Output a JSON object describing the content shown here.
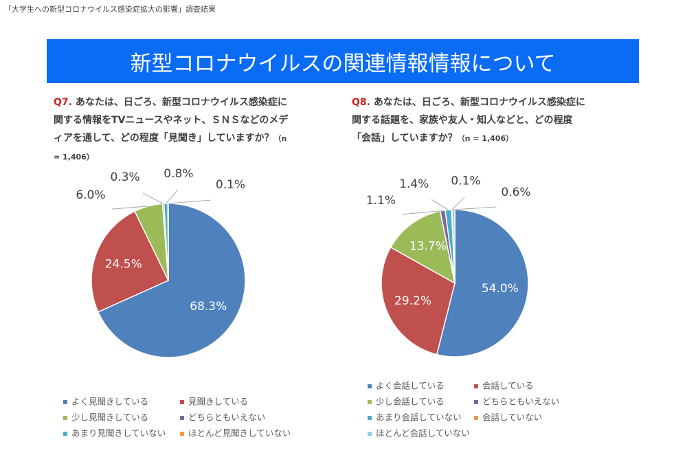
{
  "header": {
    "caption": "「大学生への新型コロナウイルス感染症拡大の影響」調査結果",
    "banner": "新型コロナウイルスの関連情報情報について"
  },
  "chart_data": [
    {
      "type": "pie",
      "label": "Q7.",
      "title": "あなたは、日ごろ、新型コロナウイルス感染症に関する情報をTVニュースやネット、ＳＮＳなどのメディアを通して、どの程度「見聞き」していますか？",
      "note": "（n = 1,406）",
      "categories": [
        "よく見聞きしている",
        "見聞きしている",
        "少し見聞きしている",
        "どちらともいえない",
        "あまり見聞きしていない",
        "ほとんど見聞きしていない"
      ],
      "values": [
        68.3,
        24.5,
        6.0,
        0.3,
        0.8,
        0.1
      ],
      "value_labels": [
        "68.3%",
        "24.5%",
        "6.0%",
        "0.3%",
        "0.8%",
        "0.1%"
      ],
      "colors": [
        "#4f81bd",
        "#c0504d",
        "#9bbb59",
        "#8064a2",
        "#4bacc6",
        "#f79646"
      ]
    },
    {
      "type": "pie",
      "label": "Q8.",
      "title": "あなたは、日ごろ、新型コロナウイルス感染症に関する話題を、家族や友人・知人などと、どの程度「会話」していますか？",
      "note": "（n = 1,406）",
      "categories": [
        "よく会話している",
        "会話している",
        "少し会話している",
        "どちらともいえない",
        "あまり会話していない",
        "会話していない",
        "ほとんど会話していない"
      ],
      "values": [
        54.0,
        29.2,
        13.7,
        1.1,
        1.4,
        0.1,
        0.6
      ],
      "value_labels": [
        "54.0%",
        "29.2%",
        "13.7%",
        "1.1%",
        "1.4%",
        "0.1%",
        "0.6%"
      ],
      "colors": [
        "#4f81bd",
        "#c0504d",
        "#9bbb59",
        "#8064a2",
        "#4bacc6",
        "#f79646",
        "#93cddd"
      ]
    }
  ]
}
